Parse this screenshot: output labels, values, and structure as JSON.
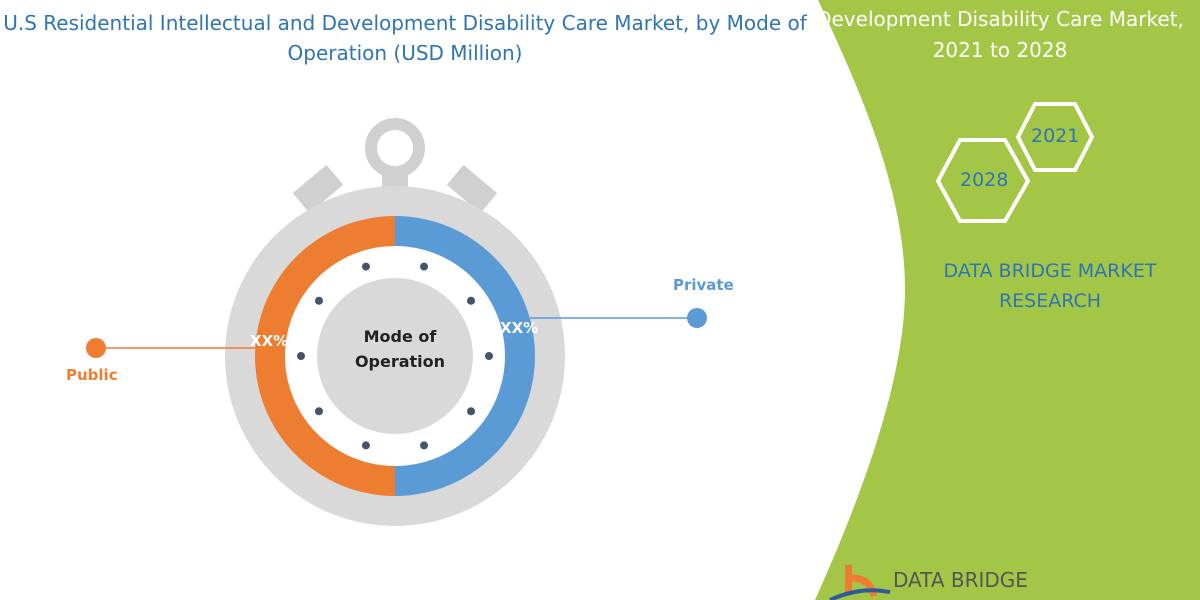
{
  "title": "U.S Residential Intellectual and Development Disability Care Market, by Mode of Operation (USD Million)",
  "side_panel": {
    "title": "Development Disability Care Market, 2021 to 2028",
    "hex_years": [
      "2021",
      "2028"
    ],
    "brand": "DATA BRIDGE MARKET RESEARCH",
    "logo_text": "DATA BRIDGE",
    "color": "#a4c646"
  },
  "chart_data": {
    "type": "pie",
    "style": "donut",
    "center_label": "Mode of Operation",
    "categories": [
      "Public",
      "Private"
    ],
    "values": [
      50,
      50
    ],
    "data_labels": [
      "XX%",
      "XX%"
    ],
    "colors": [
      "#ed7d31",
      "#5b9bd5"
    ],
    "legend": "callouts"
  }
}
